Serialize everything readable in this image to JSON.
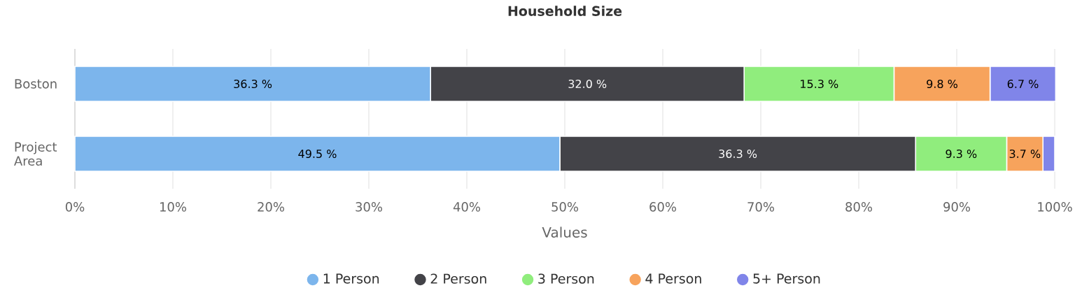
{
  "chart_data": {
    "type": "bar",
    "orientation": "horizontal",
    "stacked": true,
    "title": "Household Size",
    "xlabel": "Values",
    "categories": [
      "Boston",
      "Project Area"
    ],
    "series": [
      {
        "name": "1 Person",
        "color": "#7cb5ec",
        "values": [
          36.3,
          49.5
        ],
        "value_labels": [
          "36.3 %",
          "49.5 %"
        ]
      },
      {
        "name": "2 Person",
        "color": "#434348",
        "values": [
          32.0,
          36.3
        ],
        "value_labels": [
          "32.0 %",
          "36.3 %"
        ]
      },
      {
        "name": "3 Person",
        "color": "#90ed7d",
        "values": [
          15.3,
          9.3
        ],
        "value_labels": [
          "15.3 %",
          "9.3 %"
        ]
      },
      {
        "name": "4 Person",
        "color": "#f7a35c",
        "values": [
          9.8,
          3.7
        ],
        "value_labels": [
          "9.8 %",
          "3.7 %"
        ]
      },
      {
        "name": "5+ Person",
        "color": "#8085e9",
        "values": [
          6.7,
          1.2
        ],
        "value_labels": [
          "6.7 %",
          null
        ]
      }
    ],
    "xlim": [
      0,
      100
    ],
    "xticks": [
      {
        "value": 0,
        "label": "0%"
      },
      {
        "value": 10,
        "label": "10%"
      },
      {
        "value": 20,
        "label": "20%"
      },
      {
        "value": 30,
        "label": "30%"
      },
      {
        "value": 40,
        "label": "40%"
      },
      {
        "value": 50,
        "label": "50%"
      },
      {
        "value": 60,
        "label": "60%"
      },
      {
        "value": 70,
        "label": "70%"
      },
      {
        "value": 80,
        "label": "80%"
      },
      {
        "value": 90,
        "label": "90%"
      },
      {
        "value": 100,
        "label": "100%"
      }
    ],
    "grid": "x",
    "legend": "bottom"
  }
}
